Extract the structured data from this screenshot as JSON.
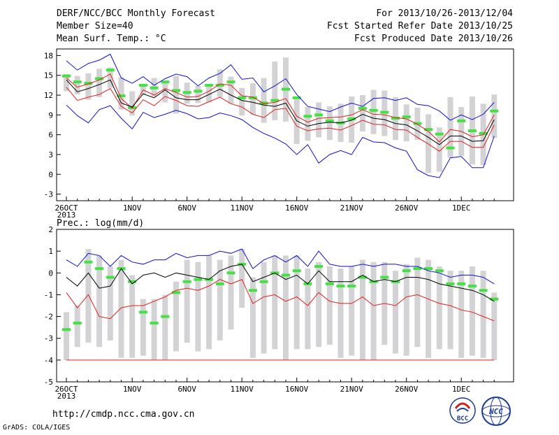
{
  "header": {
    "title": "DERF/NCC/BCC Monthly Forecast",
    "member": "Member Size=40",
    "variable": "Mean Surf. Temp.: °C",
    "period": "For 2013/10/26-2013/12/04",
    "started": "Fcst Started Refer Date 2013/10/25",
    "produced": "Fcst Produced Date 2013/10/26"
  },
  "footer": {
    "url": "http://cmdp.ncc.cma.gov.cn",
    "credit": "GrADS: COLA/IGES",
    "logo_bcc": "BCC",
    "logo_ncc": "NCC"
  },
  "x_ticks": [
    "26OCT",
    "1NOV",
    "6NOV",
    "11NOV",
    "16NOV",
    "21NOV",
    "26NOV",
    "1DEC"
  ],
  "x_year": "2013",
  "colors": {
    "box": "#d3d3d5",
    "median": "#45e043",
    "mean": "#000000",
    "inner": "#e02020",
    "outer": "#1010d0"
  },
  "chart_data": [
    {
      "type": "line",
      "title": "Mean Surf. Temp.: °C",
      "x": [
        "2013-10-26",
        "2013-10-27",
        "2013-10-28",
        "2013-10-29",
        "2013-10-30",
        "2013-10-31",
        "2013-11-01",
        "2013-11-02",
        "2013-11-03",
        "2013-11-04",
        "2013-11-05",
        "2013-11-06",
        "2013-11-07",
        "2013-11-08",
        "2013-11-09",
        "2013-11-10",
        "2013-11-11",
        "2013-11-12",
        "2013-11-13",
        "2013-11-14",
        "2013-11-15",
        "2013-11-16",
        "2013-11-17",
        "2013-11-18",
        "2013-11-19",
        "2013-11-20",
        "2013-11-21",
        "2013-11-22",
        "2013-11-23",
        "2013-11-24",
        "2013-11-25",
        "2013-11-26",
        "2013-11-27",
        "2013-11-28",
        "2013-11-29",
        "2013-11-30",
        "2013-12-01",
        "2013-12-02",
        "2013-12-03",
        "2013-12-04"
      ],
      "ylim": [
        -4,
        19
      ],
      "yticks": [
        -3,
        0,
        3,
        6,
        9,
        12,
        15,
        18
      ],
      "series": [
        {
          "role": "outer-upper",
          "values": [
            17.2,
            15.8,
            16.8,
            17.3,
            18.2,
            14.6,
            13.8,
            14.8,
            13.5,
            14.5,
            15.2,
            14.8,
            13.4,
            14.6,
            15.3,
            16.6,
            14.4,
            14.6,
            12.5,
            13.4,
            14.5,
            12.1,
            10.3,
            9.9,
            9.5,
            10.2,
            10.8,
            10.3,
            11.5,
            11.6,
            11.2,
            11.6,
            10.6,
            10.4,
            9.6,
            8.2,
            9.0,
            8.3,
            9.1,
            10.9
          ]
        },
        {
          "role": "inner-upper",
          "values": [
            14.6,
            13.2,
            13.7,
            14.3,
            15.2,
            11.5,
            10.0,
            12.8,
            12.0,
            13.0,
            12.4,
            11.7,
            11.8,
            12.6,
            13.7,
            13.5,
            11.9,
            11.7,
            10.7,
            10.9,
            11.5,
            8.8,
            7.9,
            8.5,
            8.6,
            8.7,
            9.0,
            9.8,
            9.1,
            9.0,
            8.6,
            8.4,
            7.6,
            6.5,
            4.9,
            6.8,
            6.5,
            5.7,
            6.0,
            9.0
          ]
        },
        {
          "role": "mean",
          "values": [
            14.3,
            12.5,
            13.0,
            13.6,
            14.3,
            10.8,
            10.2,
            12.2,
            11.6,
            12.8,
            11.6,
            11.3,
            11.3,
            12.1,
            12.9,
            12.0,
            11.2,
            10.9,
            10.5,
            10.3,
            10.8,
            8.1,
            7.3,
            7.7,
            7.9,
            7.8,
            8.2,
            9.1,
            8.5,
            8.3,
            7.7,
            7.5,
            6.6,
            5.6,
            4.5,
            5.8,
            5.8,
            5.0,
            5.1,
            8.3
          ]
        },
        {
          "role": "inner-lower",
          "values": [
            13.2,
            11.2,
            11.7,
            12.1,
            13.0,
            10.3,
            9.3,
            11.3,
            10.4,
            11.8,
            11.2,
            10.4,
            10.3,
            11.0,
            11.7,
            10.7,
            10.2,
            9.1,
            8.6,
            9.8,
            10.0,
            7.3,
            6.6,
            6.9,
            7.0,
            6.7,
            7.4,
            8.2,
            7.6,
            7.5,
            6.8,
            6.7,
            5.6,
            4.6,
            3.5,
            5.0,
            5.0,
            4.1,
            4.1,
            7.5
          ]
        },
        {
          "role": "outer-lower",
          "values": [
            10.5,
            8.9,
            7.8,
            9.8,
            10.4,
            8.5,
            6.9,
            9.4,
            8.6,
            9.1,
            9.7,
            9.2,
            8.4,
            8.6,
            9.3,
            8.9,
            8.3,
            7.1,
            6.2,
            5.5,
            4.6,
            3.0,
            4.5,
            1.7,
            3.0,
            3.6,
            3.0,
            5.6,
            4.9,
            4.8,
            4.0,
            3.5,
            0.7,
            -0.2,
            -0.5,
            2.5,
            2.7,
            1.0,
            1.0,
            5.8
          ]
        },
        {
          "role": "median",
          "values": [
            14.9,
            14.0,
            13.8,
            14.5,
            15.8,
            11.9,
            10.1,
            13.5,
            13.1,
            14.0,
            12.7,
            12.4,
            12.6,
            13.5,
            13.5,
            14.0,
            11.6,
            11.6,
            10.8,
            11.2,
            12.9,
            11.6,
            8.8,
            9.0,
            8.1,
            7.8,
            8.4,
            10.0,
            9.7,
            9.4,
            8.5,
            8.7,
            7.7,
            6.8,
            6.1,
            4.0,
            8.1,
            6.6,
            6.2,
            9.6
          ]
        },
        {
          "role": "box-top",
          "values": [
            15.2,
            14.9,
            15.3,
            16.0,
            16.2,
            14.7,
            12.6,
            13.5,
            14.6,
            14.2,
            14.9,
            13.9,
            13.4,
            13.6,
            15.9,
            14.8,
            13.1,
            13.8,
            14.6,
            17.1,
            17.7,
            11.4,
            10.2,
            10.9,
            10.3,
            10.7,
            11.8,
            12.0,
            12.8,
            12.7,
            11.7,
            10.6,
            10.1,
            9.1,
            7.1,
            11.7,
            10.2,
            11.8,
            10.7,
            12.1
          ]
        },
        {
          "role": "box-bottom",
          "values": [
            12.6,
            12.1,
            11.3,
            11.7,
            13.1,
            9.8,
            8.9,
            12.0,
            11.8,
            10.9,
            9.2,
            10.7,
            10.8,
            10.9,
            11.7,
            10.7,
            8.9,
            9.0,
            7.8,
            8.2,
            8.0,
            4.6,
            5.1,
            5.6,
            5.2,
            4.9,
            4.8,
            6.5,
            6.1,
            5.8,
            5.2,
            5.0,
            5.2,
            0.2,
            0.4,
            2.5,
            2.8,
            1.5,
            1.4,
            5.5
          ]
        }
      ]
    },
    {
      "type": "line",
      "title": "Prec.: log(mm/d)",
      "x": [
        "2013-10-26",
        "2013-10-27",
        "2013-10-28",
        "2013-10-29",
        "2013-10-30",
        "2013-10-31",
        "2013-11-01",
        "2013-11-02",
        "2013-11-03",
        "2013-11-04",
        "2013-11-05",
        "2013-11-06",
        "2013-11-07",
        "2013-11-08",
        "2013-11-09",
        "2013-11-10",
        "2013-11-11",
        "2013-11-12",
        "2013-11-13",
        "2013-11-14",
        "2013-11-15",
        "2013-11-16",
        "2013-11-17",
        "2013-11-18",
        "2013-11-19",
        "2013-11-20",
        "2013-11-21",
        "2013-11-22",
        "2013-11-23",
        "2013-11-24",
        "2013-11-25",
        "2013-11-26",
        "2013-11-27",
        "2013-11-28",
        "2013-11-29",
        "2013-11-30",
        "2013-12-01",
        "2013-12-02",
        "2013-12-03",
        "2013-12-04"
      ],
      "ylim": [
        -5,
        2
      ],
      "yticks": [
        -5,
        -4,
        -3,
        -2,
        -1,
        0,
        1,
        2
      ],
      "series": [
        {
          "role": "outer-upper",
          "values": [
            0.6,
            0.3,
            0.9,
            0.8,
            0.3,
            0.8,
            0.5,
            0.4,
            0.6,
            0.6,
            0.9,
            0.7,
            0.8,
            0.8,
            1.0,
            0.9,
            1.1,
            0.2,
            0.6,
            0.8,
            0.5,
            0.8,
            0.3,
            1.0,
            0.4,
            0.3,
            0.3,
            0.4,
            0.3,
            0.4,
            0.4,
            0.3,
            0.3,
            0.1,
            0.0,
            -0.2,
            -0.1,
            -0.1,
            -0.2,
            -0.5
          ]
        },
        {
          "role": "mean",
          "values": [
            -0.2,
            -0.6,
            0.0,
            -0.7,
            -0.6,
            0.2,
            -0.5,
            -0.1,
            0.0,
            -0.2,
            0.0,
            -0.1,
            -0.2,
            -0.3,
            0.1,
            0.3,
            0.4,
            -0.4,
            -0.2,
            0.0,
            -0.3,
            -0.1,
            -0.5,
            0.1,
            -0.4,
            -0.4,
            -0.4,
            -0.1,
            -0.4,
            -0.3,
            -0.4,
            -0.2,
            -0.2,
            -0.3,
            -0.5,
            -0.6,
            -0.7,
            -0.8,
            -1.0,
            -1.3
          ]
        },
        {
          "role": "lower",
          "values": [
            -0.9,
            -1.6,
            -1.0,
            -2.0,
            -2.1,
            -1.6,
            -1.5,
            -1.5,
            -1.3,
            -1.1,
            -0.8,
            -0.7,
            -0.8,
            -0.6,
            -0.3,
            -0.5,
            -0.3,
            -1.4,
            -1.1,
            -1.0,
            -1.3,
            -1.1,
            -1.5,
            -0.9,
            -1.3,
            -1.4,
            -1.4,
            -1.1,
            -1.5,
            -1.4,
            -1.5,
            -1.1,
            -1.0,
            -1.2,
            -1.4,
            -1.5,
            -1.7,
            -1.8,
            -2.0,
            -2.2
          ]
        },
        {
          "role": "min",
          "values": [
            -4.0,
            -4.0,
            -4.0,
            -4.0,
            -4.0,
            -4.0,
            -4.0,
            -4.0,
            -4.0,
            -4.0,
            -4.0,
            -4.0,
            -4.0,
            -4.0,
            -4.0,
            -4.0,
            -4.0,
            -4.0,
            -4.0,
            -4.0,
            -4.0,
            -4.0,
            -4.0,
            -4.0,
            -4.0,
            -4.0,
            -4.0,
            -4.0,
            -4.0,
            -4.0,
            -4.0,
            -4.0,
            -4.0,
            -4.0,
            -4.0,
            -4.0,
            -4.0,
            -4.0,
            -4.0,
            -4.0
          ]
        },
        {
          "role": "median",
          "values": [
            -2.6,
            -2.3,
            0.5,
            0.2,
            -0.2,
            0.2,
            -0.4,
            -1.8,
            -2.3,
            -2.0,
            -0.9,
            -0.4,
            -0.3,
            -0.3,
            -0.5,
            0.0,
            0.4,
            -0.8,
            -0.4,
            0.0,
            -0.1,
            0.1,
            -0.5,
            0.3,
            -0.5,
            -0.6,
            -0.6,
            -0.2,
            -0.4,
            -0.2,
            -0.4,
            0.1,
            0.2,
            0.2,
            0.1,
            -0.5,
            -0.5,
            -0.6,
            -0.8,
            -1.2
          ]
        },
        {
          "role": "box-top",
          "values": [
            -1.8,
            -1.5,
            1.1,
            0.8,
            0.3,
            0.6,
            -0.1,
            -1.2,
            -1.2,
            -1.0,
            -0.4,
            0.6,
            0.5,
            0.8,
            0.6,
            0.8,
            1.1,
            -0.2,
            0.5,
            0.8,
            0.8,
            0.8,
            0.2,
            0.5,
            0.3,
            0.2,
            0.3,
            0.6,
            0.5,
            0.5,
            0.1,
            0.4,
            0.7,
            0.6,
            0.3,
            0.1,
            0.1,
            0.3,
            0.1,
            -0.9
          ]
        },
        {
          "role": "box-bottom",
          "values": [
            -4.0,
            -3.4,
            -3.2,
            -3.4,
            -3.1,
            -3.9,
            -3.9,
            -3.8,
            -4.0,
            -4.0,
            -3.6,
            -3.2,
            -3.6,
            -3.5,
            -3.1,
            -2.6,
            -1.6,
            -3.9,
            -3.7,
            -3.5,
            -4.0,
            -3.5,
            -3.5,
            -3.4,
            -3.3,
            -3.9,
            -3.8,
            -4.0,
            -4.0,
            -3.3,
            -3.7,
            -3.8,
            -3.4,
            -3.9,
            -3.5,
            -3.5,
            -3.9,
            -3.8,
            -3.9,
            -4.0
          ]
        }
      ]
    }
  ]
}
